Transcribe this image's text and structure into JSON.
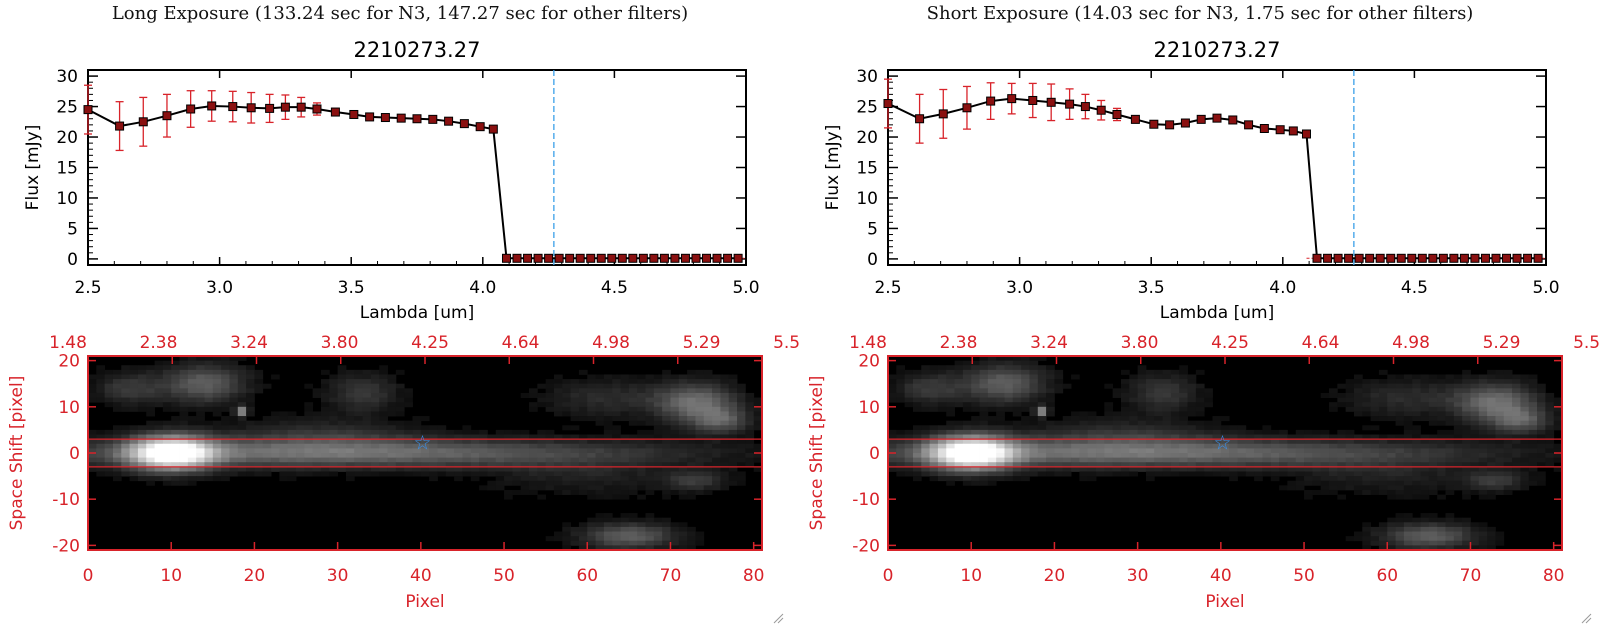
{
  "colors": {
    "axis": "#000000",
    "red": "#d8232a",
    "marker": "#8a1010",
    "cyan_line": "#3aa0e8",
    "star": "#3a8fe8",
    "background": "#ffffff"
  },
  "panels": [
    {
      "title": "Long Exposure (133.24 sec for N3, 147.27 sec for other filters)",
      "name": "long",
      "chart_data": [
        {
          "type": "line",
          "title": "2210273.27",
          "xlabel": "Lambda [um]",
          "ylabel": "Flux [mJy]",
          "xlim": [
            2.5,
            5.0
          ],
          "ylim": [
            -1,
            31
          ],
          "xticks": [
            "2.5",
            "3.0",
            "3.5",
            "4.0",
            "4.5",
            "5.0"
          ],
          "yticks": [
            "0",
            "5",
            "10",
            "15",
            "20",
            "25",
            "30"
          ],
          "vline_x": 4.27,
          "series": [
            {
              "x": [
                2.5,
                2.62,
                2.71,
                2.8,
                2.89,
                2.97,
                3.05,
                3.12,
                3.19,
                3.25,
                3.31,
                3.37,
                3.44,
                3.51,
                3.57,
                3.63,
                3.69,
                3.75,
                3.81,
                3.87,
                3.93,
                3.99,
                4.04,
                4.09,
                4.13,
                4.17,
                4.21,
                4.25,
                4.29,
                4.33,
                4.37,
                4.41,
                4.45,
                4.49,
                4.53,
                4.57,
                4.61,
                4.65,
                4.69,
                4.73,
                4.77,
                4.81,
                4.85,
                4.89,
                4.93,
                4.97
              ],
              "y": [
                24.5,
                21.8,
                22.5,
                23.5,
                24.6,
                25.1,
                25.0,
                24.8,
                24.7,
                24.9,
                24.9,
                24.6,
                24.1,
                23.7,
                23.3,
                23.2,
                23.1,
                23.0,
                22.9,
                22.6,
                22.2,
                21.7,
                21.3,
                0.1,
                0.1,
                0.1,
                0.1,
                0.1,
                0.1,
                0.1,
                0.1,
                0.1,
                0.1,
                0.1,
                0.1,
                0.1,
                0.1,
                0.1,
                0.1,
                0.1,
                0.1,
                0.1,
                0.1,
                0.1,
                0.1,
                0.1
              ],
              "yerr": [
                4.0,
                4.0,
                4.0,
                3.5,
                3.0,
                2.5,
                2.5,
                2.5,
                2.3,
                2.0,
                1.6,
                1.0,
                0.6,
                0.4,
                0.3,
                0.3,
                0.3,
                0.3,
                0.3,
                0.3,
                0.3,
                0.3,
                0.3,
                0,
                0,
                0,
                0,
                0,
                0,
                0,
                0,
                0,
                0,
                0,
                0,
                0,
                0,
                0,
                0,
                0,
                0,
                0,
                0,
                0,
                0,
                0
              ]
            }
          ]
        },
        {
          "type": "heatmap",
          "xlabel": "Pixel",
          "ylabel": "Space Shift [pixel]",
          "xlim": [
            0,
            81
          ],
          "ylim": [
            -21,
            21
          ],
          "xticks": [
            "0",
            "10",
            "20",
            "30",
            "40",
            "50",
            "60",
            "70",
            "80"
          ],
          "yticks": [
            "-20",
            "-10",
            "0",
            "10",
            "20"
          ],
          "top_axis_ticks": [
            "1.48",
            "2.38",
            "3.24",
            "3.80",
            "4.25",
            "4.64",
            "4.98",
            "5.29",
            "5.55"
          ],
          "aperture_lines_y": [
            3,
            -3
          ],
          "star_marker": {
            "x": 40.2,
            "y": 2.5
          },
          "blobs": [
            {
              "x": 10,
              "y": 0,
              "sx": 3.5,
              "sy": 2.6,
              "a": 1.0
            },
            {
              "x": 30,
              "y": 0,
              "sx": 26,
              "sy": 2.2,
              "a": 0.42
            },
            {
              "x": 14,
              "y": 15,
              "sx": 3.5,
              "sy": 3,
              "a": 0.35
            },
            {
              "x": 5,
              "y": 14,
              "sx": 3,
              "sy": 2.5,
              "a": 0.2
            },
            {
              "x": 33,
              "y": 13,
              "sx": 3,
              "sy": 3,
              "a": 0.2
            },
            {
              "x": 28,
              "y": 4,
              "sx": 8,
              "sy": 2.5,
              "a": 0.15
            },
            {
              "x": 18.5,
              "y": 9,
              "sx": 0.5,
              "sy": 0.7,
              "a": 0.55
            },
            {
              "x": 73,
              "y": 11,
              "sx": 3.5,
              "sy": 3,
              "a": 0.4
            },
            {
              "x": 76,
              "y": 7,
              "sx": 2.5,
              "sy": 2,
              "a": 0.3
            },
            {
              "x": 62,
              "y": 12,
              "sx": 5,
              "sy": 3,
              "a": 0.15
            },
            {
              "x": 65,
              "y": -18,
              "sx": 4,
              "sy": 2,
              "a": 0.35
            },
            {
              "x": 73,
              "y": -6,
              "sx": 2.5,
              "sy": 1.5,
              "a": 0.2
            },
            {
              "x": 60,
              "y": -5,
              "sx": 8,
              "sy": 3,
              "a": 0.1
            }
          ]
        }
      ]
    },
    {
      "title": "Short Exposure (14.03 sec for N3, 1.75 sec for other filters)",
      "name": "short",
      "chart_data": [
        {
          "type": "line",
          "title": "2210273.27",
          "xlabel": "Lambda [um]",
          "ylabel": "Flux [mJy]",
          "xlim": [
            2.5,
            5.0
          ],
          "ylim": [
            -1,
            31
          ],
          "xticks": [
            "2.5",
            "3.0",
            "3.5",
            "4.0",
            "4.5",
            "5.0"
          ],
          "yticks": [
            "0",
            "5",
            "10",
            "15",
            "20",
            "25",
            "30"
          ],
          "vline_x": 4.27,
          "series": [
            {
              "x": [
                2.5,
                2.62,
                2.71,
                2.8,
                2.89,
                2.97,
                3.05,
                3.12,
                3.19,
                3.25,
                3.31,
                3.37,
                3.44,
                3.51,
                3.57,
                3.63,
                3.69,
                3.75,
                3.81,
                3.87,
                3.93,
                3.99,
                4.04,
                4.09,
                4.13,
                4.17,
                4.21,
                4.25,
                4.29,
                4.33,
                4.37,
                4.41,
                4.45,
                4.49,
                4.53,
                4.57,
                4.61,
                4.65,
                4.69,
                4.73,
                4.77,
                4.81,
                4.85,
                4.89,
                4.93,
                4.97
              ],
              "y": [
                25.5,
                23.0,
                23.8,
                24.8,
                25.9,
                26.3,
                26.0,
                25.7,
                25.4,
                25.0,
                24.4,
                23.7,
                22.9,
                22.1,
                22.0,
                22.3,
                22.9,
                23.1,
                22.8,
                22.0,
                21.4,
                21.2,
                21.0,
                20.5,
                0.1,
                0.1,
                0.1,
                0.1,
                0.1,
                0.1,
                0.1,
                0.1,
                0.1,
                0.1,
                0.1,
                0.1,
                0.1,
                0.1,
                0.1,
                0.1,
                0.1,
                0.1,
                0.1,
                0.1,
                0.1,
                0.1
              ],
              "yerr": [
                4.0,
                4.0,
                4.0,
                3.5,
                3.0,
                2.5,
                2.8,
                3.0,
                2.5,
                2.0,
                1.6,
                1.0,
                0.6,
                0.4,
                0.3,
                0.3,
                0.3,
                0.3,
                0.3,
                0.3,
                0.3,
                0.3,
                0.3,
                0.3,
                0,
                0,
                0,
                0,
                0,
                0,
                0,
                0,
                0,
                0,
                0,
                0,
                0,
                0,
                0,
                0,
                0,
                0,
                0,
                0,
                0,
                0
              ]
            }
          ]
        },
        {
          "type": "heatmap",
          "xlabel": "Pixel",
          "ylabel": "Space Shift [pixel]",
          "xlim": [
            0,
            81
          ],
          "ylim": [
            -21,
            21
          ],
          "xticks": [
            "0",
            "10",
            "20",
            "30",
            "40",
            "50",
            "60",
            "70",
            "80"
          ],
          "yticks": [
            "-20",
            "-10",
            "0",
            "10",
            "20"
          ],
          "top_axis_ticks": [
            "1.48",
            "2.38",
            "3.24",
            "3.80",
            "4.25",
            "4.64",
            "4.98",
            "5.29",
            "5.55"
          ],
          "aperture_lines_y": [
            3,
            -3
          ],
          "star_marker": {
            "x": 40.2,
            "y": 2.5
          },
          "blobs": [
            {
              "x": 10,
              "y": 0,
              "sx": 3.5,
              "sy": 2.6,
              "a": 1.0
            },
            {
              "x": 30,
              "y": 0,
              "sx": 26,
              "sy": 2.2,
              "a": 0.42
            },
            {
              "x": 14,
              "y": 15,
              "sx": 3.5,
              "sy": 3,
              "a": 0.35
            },
            {
              "x": 5,
              "y": 14,
              "sx": 3,
              "sy": 2.5,
              "a": 0.2
            },
            {
              "x": 33,
              "y": 13,
              "sx": 3,
              "sy": 3,
              "a": 0.2
            },
            {
              "x": 28,
              "y": 4,
              "sx": 8,
              "sy": 2.5,
              "a": 0.15
            },
            {
              "x": 18.5,
              "y": 9,
              "sx": 0.5,
              "sy": 0.7,
              "a": 0.55
            },
            {
              "x": 73,
              "y": 11,
              "sx": 3.5,
              "sy": 3,
              "a": 0.4
            },
            {
              "x": 76,
              "y": 7,
              "sx": 2.5,
              "sy": 2,
              "a": 0.3
            },
            {
              "x": 62,
              "y": 12,
              "sx": 5,
              "sy": 3,
              "a": 0.15
            },
            {
              "x": 65,
              "y": -18,
              "sx": 4,
              "sy": 2,
              "a": 0.35
            },
            {
              "x": 73,
              "y": -6,
              "sx": 2.5,
              "sy": 1.5,
              "a": 0.2
            },
            {
              "x": 60,
              "y": -5,
              "sx": 8,
              "sy": 3,
              "a": 0.1
            }
          ]
        }
      ]
    }
  ]
}
